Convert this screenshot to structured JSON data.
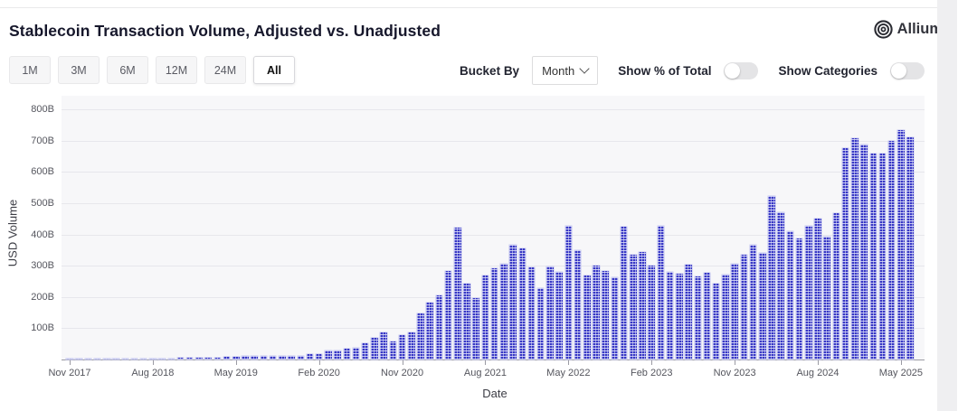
{
  "header": {
    "title": "Stablecoin Transaction Volume, Adjusted vs. Unadjusted",
    "logo_text": "Allium"
  },
  "toolbar": {
    "range_buttons": [
      "1M",
      "3M",
      "6M",
      "12M",
      "24M",
      "All"
    ],
    "selected_range": "All",
    "bucket_by_label": "Bucket By",
    "bucket_by_value": "Month",
    "show_pct_label": "Show % of Total",
    "show_pct_on": false,
    "show_categories_label": "Show Categories",
    "show_categories_on": false
  },
  "chart_data": {
    "type": "bar",
    "title": "Stablecoin Transaction Volume, Adjusted vs. Unadjusted",
    "xlabel": "Date",
    "ylabel": "USD Volume",
    "unit": "USD billions",
    "bar_color": "#3a3ac6",
    "grid": true,
    "legend": "none",
    "ylim": [
      0,
      800
    ],
    "y_ticks": [
      "100B",
      "200B",
      "300B",
      "400B",
      "500B",
      "600B",
      "700B",
      "800B"
    ],
    "x_ticks": [
      {
        "index": 0,
        "label": "Nov 2017"
      },
      {
        "index": 9,
        "label": "Aug 2018"
      },
      {
        "index": 18,
        "label": "May 2019"
      },
      {
        "index": 27,
        "label": "Feb 2020"
      },
      {
        "index": 36,
        "label": "Nov 2020"
      },
      {
        "index": 45,
        "label": "Aug 2021"
      },
      {
        "index": 54,
        "label": "May 2022"
      },
      {
        "index": 63,
        "label": "Feb 2023"
      },
      {
        "index": 72,
        "label": "Nov 2023"
      },
      {
        "index": 81,
        "label": "Aug 2024"
      },
      {
        "index": 90,
        "label": "May 2025"
      }
    ],
    "categories": [
      "Nov 2017",
      "Dec 2017",
      "Jan 2018",
      "Feb 2018",
      "Mar 2018",
      "Apr 2018",
      "May 2018",
      "Jun 2018",
      "Jul 2018",
      "Aug 2018",
      "Sep 2018",
      "Oct 2018",
      "Nov 2018",
      "Dec 2018",
      "Jan 2019",
      "Feb 2019",
      "Mar 2019",
      "Apr 2019",
      "May 2019",
      "Jun 2019",
      "Jul 2019",
      "Aug 2019",
      "Sep 2019",
      "Oct 2019",
      "Nov 2019",
      "Dec 2019",
      "Jan 2020",
      "Feb 2020",
      "Mar 2020",
      "Apr 2020",
      "May 2020",
      "Jun 2020",
      "Jul 2020",
      "Aug 2020",
      "Sep 2020",
      "Oct 2020",
      "Nov 2020",
      "Dec 2020",
      "Jan 2021",
      "Feb 2021",
      "Mar 2021",
      "Apr 2021",
      "May 2021",
      "Jun 2021",
      "Jul 2021",
      "Aug 2021",
      "Sep 2021",
      "Oct 2021",
      "Nov 2021",
      "Dec 2021",
      "Jan 2022",
      "Feb 2022",
      "Mar 2022",
      "Apr 2022",
      "May 2022",
      "Jun 2022",
      "Jul 2022",
      "Aug 2022",
      "Sep 2022",
      "Oct 2022",
      "Nov 2022",
      "Dec 2022",
      "Jan 2023",
      "Feb 2023",
      "Mar 2023",
      "Apr 2023",
      "May 2023",
      "Jun 2023",
      "Jul 2023",
      "Aug 2023",
      "Sep 2023",
      "Oct 2023",
      "Nov 2023",
      "Dec 2023",
      "Jan 2024",
      "Feb 2024",
      "Mar 2024",
      "Apr 2024",
      "May 2024",
      "Jun 2024",
      "Jul 2024",
      "Aug 2024",
      "Sep 2024",
      "Oct 2024",
      "Nov 2024",
      "Dec 2024",
      "Jan 2025",
      "Feb 2025",
      "Mar 2025",
      "Apr 2025",
      "May 2025",
      "Jun 2025"
    ],
    "values": [
      1,
      2,
      2,
      2,
      2,
      2,
      2,
      3,
      3,
      3,
      4,
      4,
      5,
      5,
      5,
      6,
      7,
      8,
      10,
      12,
      13,
      12,
      12,
      13,
      13,
      12,
      18,
      17,
      29,
      28,
      34,
      39,
      51,
      69,
      88,
      59,
      77,
      88,
      148,
      182,
      206,
      282,
      423,
      242,
      196,
      268,
      291,
      307,
      368,
      356,
      294,
      228,
      297,
      280,
      428,
      349,
      270,
      302,
      283,
      264,
      426,
      335,
      344,
      301,
      428,
      279,
      275,
      303,
      265,
      277,
      244,
      271,
      306,
      335,
      367,
      340,
      523,
      470,
      409,
      388,
      427,
      451,
      394,
      468,
      675,
      708,
      687,
      658,
      658,
      699,
      734,
      710
    ]
  }
}
